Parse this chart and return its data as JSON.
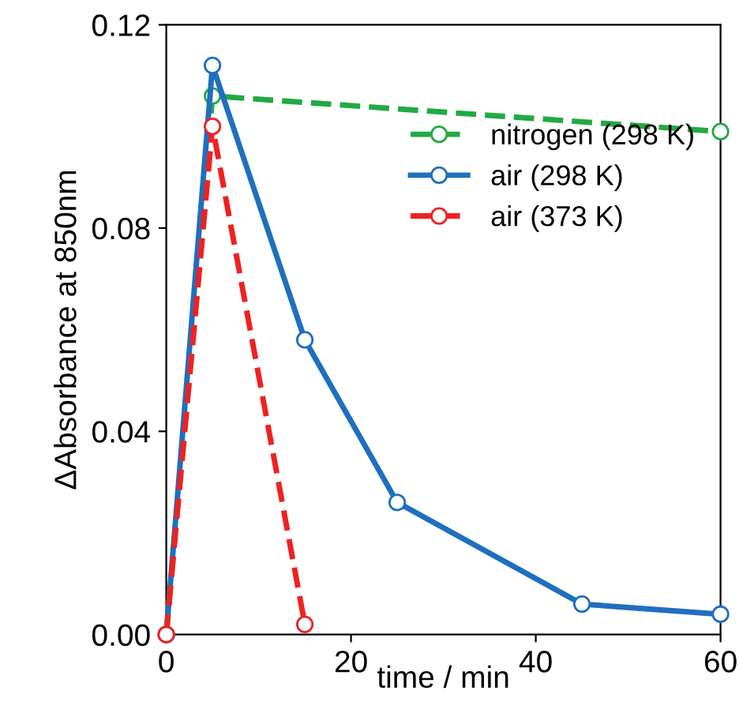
{
  "chart_data": {
    "type": "line",
    "xlabel": "time / min",
    "ylabel": "ΔAbsorbance at 850nm",
    "xlim": [
      0,
      60
    ],
    "ylim": [
      0,
      0.12
    ],
    "xticks": [
      0,
      20,
      40,
      60
    ],
    "yticks": [
      {
        "value": 0,
        "label": "0.00"
      },
      {
        "value": 0.04,
        "label": "0.04"
      },
      {
        "value": 0.08,
        "label": "0.08"
      },
      {
        "value": 0.12,
        "label": "0.12"
      }
    ],
    "grid": false,
    "legend": "top right",
    "marker": "circle",
    "series": [
      {
        "name": "nitrogen (298 K)",
        "color": "#22aa44",
        "line_style": "dashed",
        "x": [
          0,
          5,
          60
        ],
        "values": [
          0,
          0.106,
          0.099
        ]
      },
      {
        "name": "air (298 K)",
        "color": "#1f6fc0",
        "line_style": "solid",
        "x": [
          0,
          5,
          15,
          25,
          45,
          60
        ],
        "values": [
          0,
          0.112,
          0.058,
          0.026,
          0.006,
          0.004
        ]
      },
      {
        "name": "air (373 K)",
        "color": "#ee2222",
        "line_style": "dashed",
        "x": [
          0,
          5,
          15
        ],
        "values": [
          0,
          0.1,
          0.002
        ]
      }
    ]
  }
}
